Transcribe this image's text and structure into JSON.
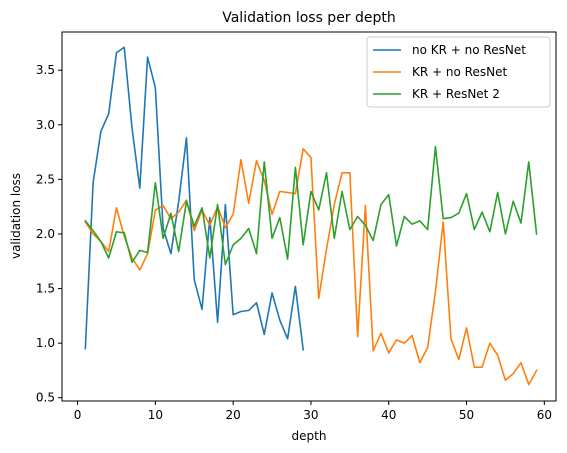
{
  "chart_data": {
    "type": "line",
    "title": "Validation loss per depth",
    "xlabel": "depth",
    "ylabel": "validation loss",
    "xlim": [
      -2,
      61.5
    ],
    "ylim": [
      0.47,
      3.85
    ],
    "xticks": [
      0,
      10,
      20,
      30,
      40,
      50,
      60
    ],
    "yticks": [
      0.5,
      1.0,
      1.5,
      2.0,
      2.5,
      3.0,
      3.5
    ],
    "ytick_labels": [
      "0.5",
      "1.0",
      "1.5",
      "2.0",
      "2.5",
      "3.0",
      "3.5"
    ],
    "grid": false,
    "legend_position": "top-right",
    "series": [
      {
        "name": "no KR + no ResNet",
        "color": "#1f77b4",
        "x": [
          1,
          2,
          3,
          4,
          5,
          6,
          7,
          8,
          9,
          10,
          11,
          12,
          13,
          14,
          15,
          16,
          17,
          18,
          19,
          20,
          21,
          22,
          23,
          24,
          25,
          26,
          27,
          28,
          29
        ],
        "y": [
          0.95,
          2.47,
          2.94,
          3.1,
          3.66,
          3.71,
          2.97,
          2.42,
          3.62,
          3.34,
          2.05,
          1.82,
          2.3,
          2.88,
          1.58,
          1.31,
          2.15,
          1.19,
          2.27,
          1.26,
          1.29,
          1.3,
          1.37,
          1.08,
          1.46,
          1.21,
          1.04,
          1.52,
          0.94
        ]
      },
      {
        "name": "KR + no ResNet",
        "color": "#ff7f0e",
        "x": [
          1,
          2,
          3,
          4,
          5,
          6,
          7,
          8,
          9,
          10,
          11,
          12,
          13,
          14,
          15,
          16,
          17,
          18,
          19,
          20,
          21,
          22,
          23,
          24,
          25,
          26,
          27,
          28,
          29,
          30,
          31,
          32,
          33,
          34,
          35,
          36,
          37,
          38,
          39,
          40,
          41,
          42,
          43,
          44,
          45,
          46,
          47,
          48,
          49,
          50,
          51,
          52,
          53,
          54,
          55,
          56,
          57,
          58,
          59
        ],
        "y": [
          2.11,
          2.0,
          1.93,
          1.84,
          2.24,
          1.98,
          1.78,
          1.67,
          1.82,
          2.22,
          2.26,
          2.14,
          2.2,
          2.31,
          2.03,
          2.22,
          2.08,
          2.25,
          2.06,
          2.18,
          2.68,
          2.28,
          2.67,
          2.49,
          2.18,
          2.39,
          2.38,
          2.37,
          2.78,
          2.7,
          1.41,
          1.86,
          2.27,
          2.56,
          2.56,
          1.06,
          2.26,
          0.93,
          1.09,
          0.91,
          1.03,
          1.0,
          1.07,
          0.82,
          0.96,
          1.47,
          2.11,
          1.04,
          0.85,
          1.14,
          0.78,
          0.78,
          1.0,
          0.89,
          0.66,
          0.72,
          0.82,
          0.62,
          0.75
        ]
      },
      {
        "name": "KR + ResNet 2",
        "color": "#2ca02c",
        "x": [
          1,
          2,
          3,
          4,
          5,
          6,
          7,
          8,
          9,
          10,
          11,
          12,
          13,
          14,
          15,
          16,
          17,
          18,
          19,
          20,
          21,
          22,
          23,
          24,
          25,
          26,
          27,
          28,
          29,
          30,
          31,
          32,
          33,
          34,
          35,
          36,
          37,
          38,
          39,
          40,
          41,
          42,
          43,
          44,
          45,
          46,
          47,
          48,
          49,
          50,
          51,
          52,
          53,
          54,
          55,
          56,
          57,
          58,
          59
        ],
        "y": [
          2.12,
          2.03,
          1.93,
          1.78,
          2.02,
          2.01,
          1.74,
          1.85,
          1.83,
          2.47,
          1.96,
          2.19,
          1.84,
          2.3,
          2.07,
          2.24,
          1.78,
          2.27,
          1.72,
          1.9,
          1.96,
          2.05,
          1.82,
          2.66,
          1.96,
          2.15,
          1.77,
          2.61,
          1.9,
          2.39,
          2.22,
          2.56,
          1.96,
          2.39,
          2.04,
          2.16,
          2.08,
          1.94,
          2.27,
          2.36,
          1.89,
          2.16,
          2.09,
          2.12,
          2.04,
          2.8,
          2.14,
          2.15,
          2.19,
          2.37,
          2.04,
          2.2,
          2.02,
          2.38,
          2.0,
          2.3,
          2.1,
          2.66,
          2.0
        ]
      }
    ]
  }
}
